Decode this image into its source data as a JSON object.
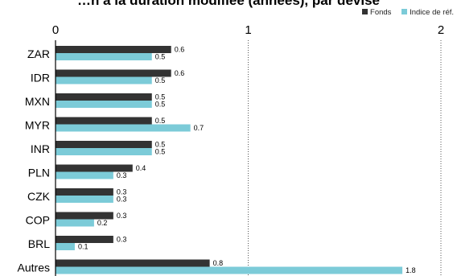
{
  "chart_data": {
    "type": "bar",
    "orientation": "horizontal",
    "title": "…n à la duration modifiée (années), par devise",
    "categories": [
      "ZAR",
      "IDR",
      "MXN",
      "MYR",
      "INR",
      "PLN",
      "CZK",
      "COP",
      "BRL",
      "Autres"
    ],
    "series": [
      {
        "name": "Fonds",
        "values": [
          0.6,
          0.6,
          0.5,
          0.5,
          0.5,
          0.4,
          0.3,
          0.3,
          0.3,
          0.8
        ],
        "color": "#333333"
      },
      {
        "name": "Indice de réf.",
        "values": [
          0.5,
          0.5,
          0.5,
          0.7,
          0.5,
          0.3,
          0.3,
          0.2,
          0.1,
          1.8
        ],
        "color": "#7ccbd8"
      }
    ],
    "xlim": [
      0,
      2
    ],
    "xticks": [
      0,
      1,
      2
    ],
    "grid": "vertical dotted lines at 1 and 2",
    "legend_position": "top-right",
    "data_labels": true
  }
}
